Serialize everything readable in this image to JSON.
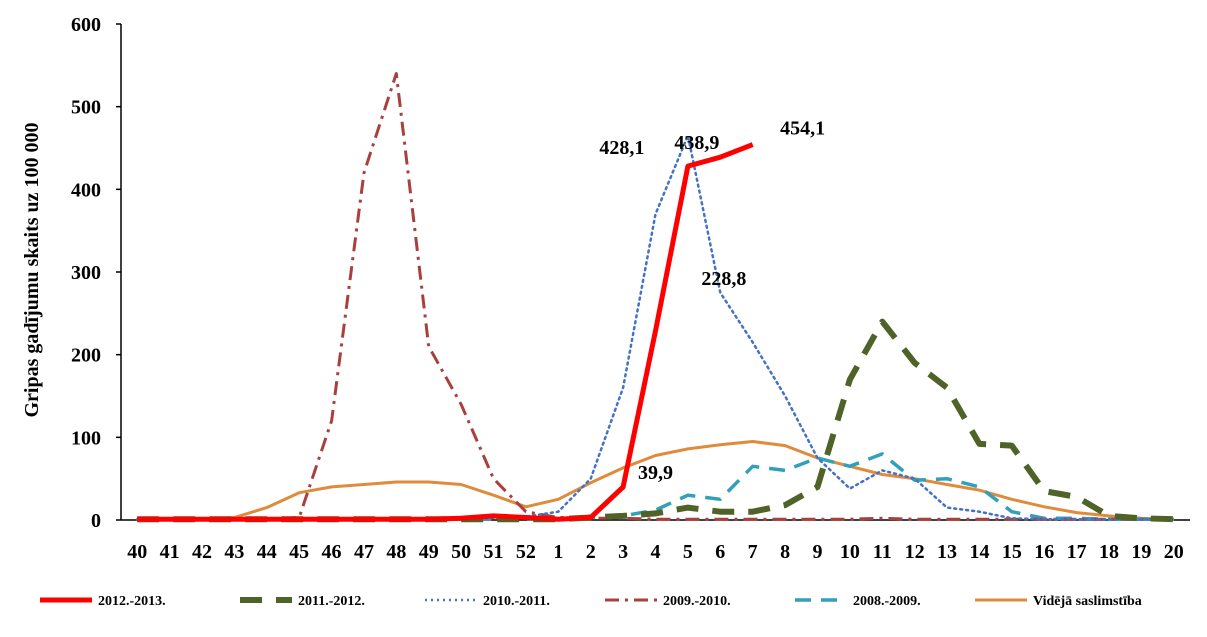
{
  "chart_data": {
    "type": "line",
    "title": "",
    "xlabel": "",
    "ylabel": "Gripas gadījumu skaits uz 100 000",
    "ylim": [
      0,
      600
    ],
    "yticks": [
      "0",
      "100",
      "200",
      "300",
      "400",
      "500",
      "600"
    ],
    "categories": [
      "40",
      "41",
      "42",
      "43",
      "44",
      "45",
      "46",
      "47",
      "48",
      "49",
      "50",
      "51",
      "52",
      "1",
      "2",
      "3",
      "4",
      "5",
      "6",
      "7",
      "8",
      "9",
      "10",
      "11",
      "12",
      "13",
      "14",
      "15",
      "16",
      "17",
      "18",
      "19",
      "20"
    ],
    "legend_position": "bottom",
    "series": [
      {
        "name": "2012.-2013.",
        "color": "#ff0000",
        "style": "solid-thick",
        "values": [
          1,
          1,
          1,
          1,
          1,
          1,
          1,
          1,
          1,
          1,
          2,
          5,
          3,
          1,
          3,
          39.9,
          228.8,
          428.1,
          438.9,
          454.1,
          null,
          null,
          null,
          null,
          null,
          null,
          null,
          null,
          null,
          null,
          null,
          null,
          null
        ]
      },
      {
        "name": "2011.-2012.",
        "color": "#4f6228",
        "style": "long-dash",
        "values": [
          1,
          1,
          1,
          1,
          1,
          1,
          1,
          1,
          1,
          1,
          1,
          1,
          1,
          1,
          3,
          5,
          8,
          15,
          10,
          10,
          18,
          40,
          170,
          240,
          190,
          160,
          92,
          90,
          35,
          28,
          5,
          2,
          1
        ]
      },
      {
        "name": "2010.-2011.",
        "color": "#4472c4",
        "style": "dotted",
        "values": [
          1,
          1,
          1,
          1,
          1,
          1,
          1,
          1,
          1,
          1,
          1,
          2,
          4,
          10,
          50,
          160,
          370,
          465,
          275,
          215,
          150,
          75,
          38,
          60,
          50,
          15,
          10,
          2,
          1,
          1,
          1,
          1,
          1
        ]
      },
      {
        "name": "2009.-2010.",
        "color": "#a9403d",
        "style": "dash-dot",
        "values": [
          1,
          1,
          1,
          1,
          1,
          3,
          120,
          420,
          540,
          210,
          140,
          50,
          10,
          3,
          2,
          2,
          1,
          1,
          1,
          1,
          1,
          1,
          1,
          2,
          1,
          1,
          1,
          1,
          1,
          1,
          1,
          1,
          1
        ]
      },
      {
        "name": "2008.-2009.",
        "color": "#31a0b8",
        "style": "dash",
        "values": [
          1,
          1,
          1,
          1,
          1,
          1,
          1,
          1,
          1,
          1,
          1,
          1,
          1,
          1,
          3,
          5,
          12,
          30,
          25,
          65,
          60,
          75,
          65,
          80,
          48,
          50,
          40,
          10,
          2,
          2,
          1,
          1,
          1
        ]
      },
      {
        "name": "Vidējā saslimstība",
        "color": "#e08a3c",
        "style": "solid",
        "values": [
          0,
          0,
          1,
          3,
          15,
          33,
          40,
          43,
          46,
          46,
          43,
          30,
          16,
          25,
          45,
          63,
          78,
          86,
          91,
          95,
          90,
          75,
          65,
          55,
          50,
          43,
          36,
          25,
          16,
          9,
          5,
          2,
          1
        ]
      }
    ],
    "annotations": [
      {
        "text": "39,9",
        "series": "2012.-2013.",
        "category": "4"
      },
      {
        "text": "228,8",
        "series": "2012.-2013.",
        "category": "5"
      },
      {
        "text": "428,1",
        "series": "2012.-2013.",
        "category": "5"
      },
      {
        "text": "438,9",
        "series": "2012.-2013.",
        "category": "5"
      },
      {
        "text": "454,1",
        "series": "2012.-2013.",
        "category": "7"
      }
    ]
  }
}
